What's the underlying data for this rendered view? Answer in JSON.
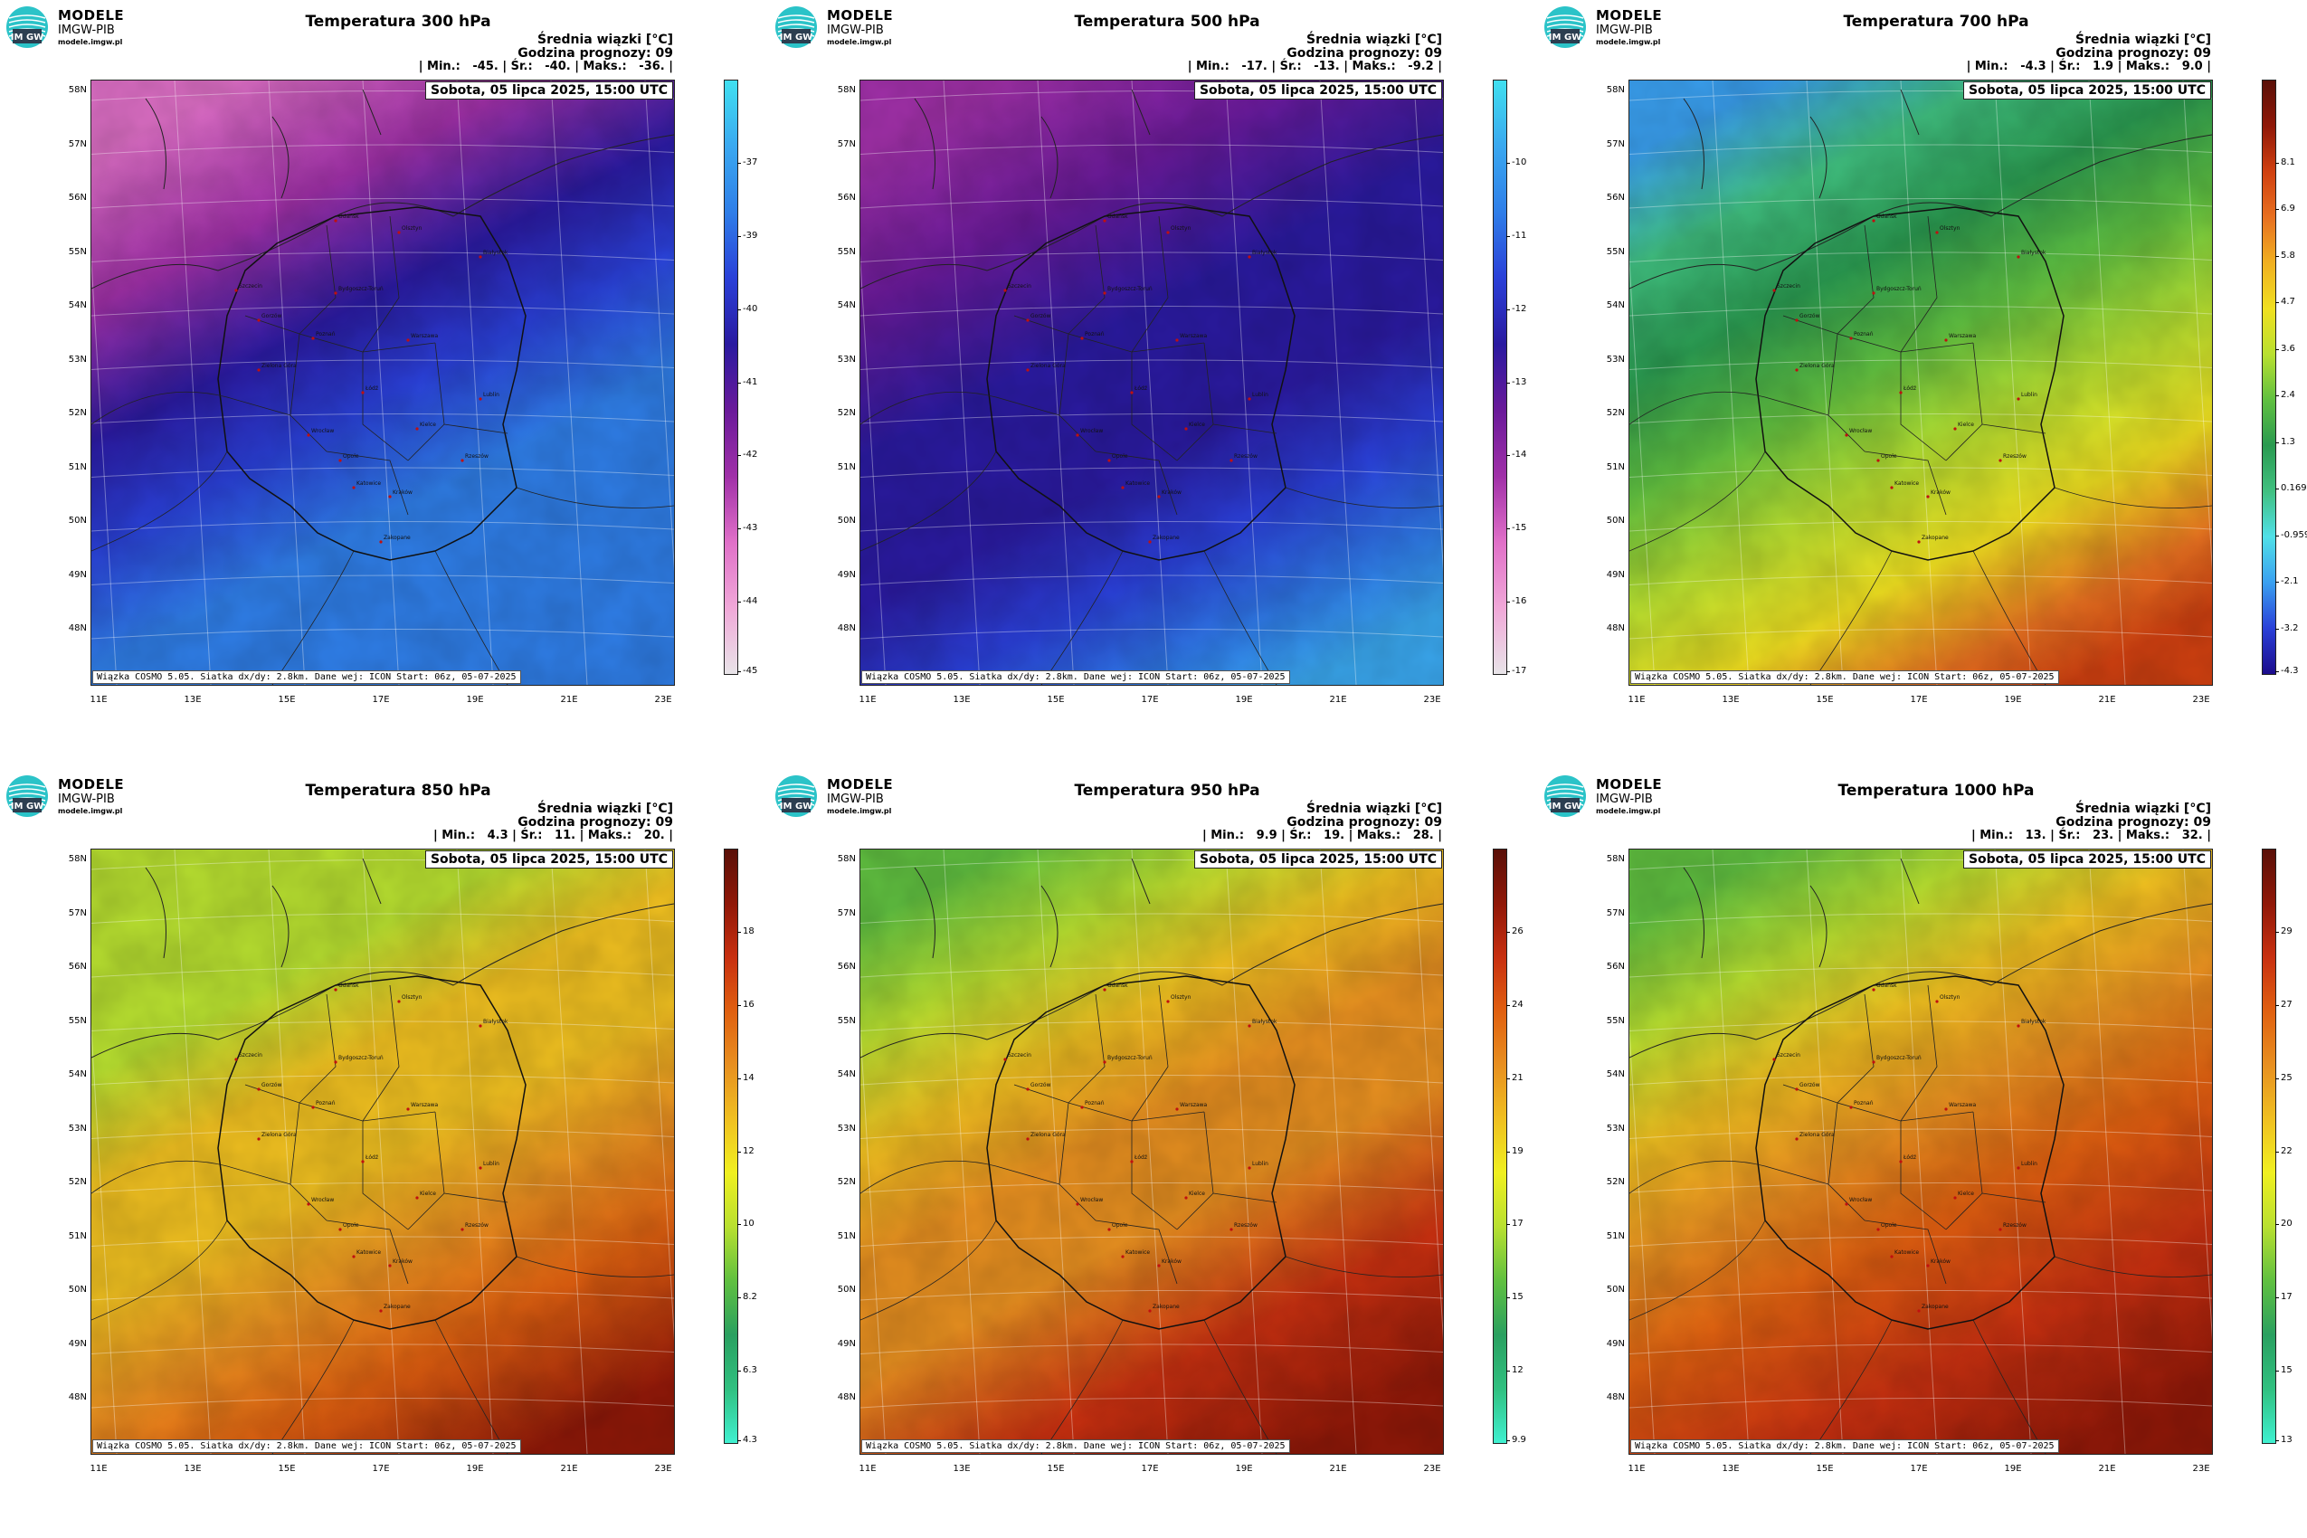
{
  "logo": {
    "badge_text": "IM GW",
    "line1": "MODELE",
    "line2": "IMGW-PIB",
    "line3": "modele.imgw.pl"
  },
  "common": {
    "unit_label": "Średnia wiązki [°C]",
    "hour_label": "Godzina prognozy: 09",
    "date_label": "Sobota, 05 lipca 2025, 15:00 UTC",
    "footnote": "Wiązka COSMO 5.05. Siatka dx/dy: 2.8km. Dane wej: ICON Start: 06z, 05-07-2025",
    "lat_labels": [
      "58N",
      "57N",
      "56N",
      "55N",
      "54N",
      "53N",
      "52N",
      "51N",
      "50N",
      "49N",
      "48N"
    ],
    "lon_labels": [
      "11E",
      "13E",
      "15E",
      "17E",
      "19E",
      "21E",
      "23E"
    ],
    "cities": [
      "Gdańsk",
      "Olsztyn",
      "Szczecin",
      "Białystok",
      "Bydgoszcz-Toruń",
      "Gorzów",
      "Poznań",
      "Warszawa",
      "Zielona Góra",
      "Łódź",
      "Lublin",
      "Wrocław",
      "Kielce",
      "Opole",
      "Katowice",
      "Kraków",
      "Rzeszów",
      "Zakopane"
    ]
  },
  "panels": [
    {
      "title": "Temperatura 300 hPa",
      "stats": "| Min.:   -45. | Śr.:   -40. | Maks.:   -36. |",
      "colorbar": [
        "-37",
        "-39",
        "-40",
        "-41",
        "-42",
        "-43",
        "-44",
        "-45"
      ],
      "palette": "cold_upper",
      "field": "300"
    },
    {
      "title": "Temperatura 500 hPa",
      "stats": "| Min.:   -17. | Śr.:   -13. | Maks.:   -9.2 |",
      "colorbar": [
        "-10",
        "-11",
        "-12",
        "-13",
        "-14",
        "-15",
        "-16",
        "-17"
      ],
      "palette": "cold_upper",
      "field": "500"
    },
    {
      "title": "Temperatura 700 hPa",
      "stats": "| Min.:   -4.3 | Śr.:   1.9 | Maks.:   9.0 |",
      "colorbar": [
        "8.1",
        "6.9",
        "5.8",
        "4.7",
        "3.6",
        "2.4",
        "1.3",
        "0.169",
        "-0.959",
        "-2.1",
        "-3.2",
        "-4.3"
      ],
      "palette": "full",
      "field": "700"
    },
    {
      "title": "Temperatura 850 hPa",
      "stats": "| Min.:   4.3 | Śr.:   11. | Maks.:   20. |",
      "colorbar": [
        "18",
        "16",
        "14",
        "12",
        "10",
        "8.2",
        "6.3",
        "4.3"
      ],
      "palette": "warm",
      "field": "850"
    },
    {
      "title": "Temperatura 950 hPa",
      "stats": "| Min.:   9.9 | Śr.:   19. | Maks.:   28. |",
      "colorbar": [
        "26",
        "24",
        "21",
        "19",
        "17",
        "15",
        "12",
        "9.9"
      ],
      "palette": "warm",
      "field": "950"
    },
    {
      "title": "Temperatura 1000 hPa",
      "stats": "| Min.:   13. | Śr.:   23. | Maks.:   32. |",
      "colorbar": [
        "29",
        "27",
        "25",
        "22",
        "20",
        "17",
        "15",
        "13"
      ],
      "palette": "warm",
      "field": "1000"
    }
  ],
  "palettes": {
    "cold_upper": [
      "#e8e4e8",
      "#f0a8d8",
      "#e070c8",
      "#a030a8",
      "#6a1a9a",
      "#2a1aa0",
      "#2a40d8",
      "#2f7ee8",
      "#3aa8f0",
      "#40e0f0"
    ],
    "full": [
      "#1c0c8c",
      "#2a40d8",
      "#3aa0f0",
      "#50e0e8",
      "#40c080",
      "#2a9a50",
      "#60c040",
      "#b8e030",
      "#f0e020",
      "#f0b020",
      "#e87020",
      "#d04010",
      "#901808",
      "#5a1008"
    ],
    "warm": [
      "#40f0d0",
      "#30c080",
      "#2aa060",
      "#60c040",
      "#b8e030",
      "#f0f020",
      "#f0c020",
      "#e89020",
      "#e06010",
      "#c83010",
      "#901808",
      "#5a1008"
    ]
  }
}
